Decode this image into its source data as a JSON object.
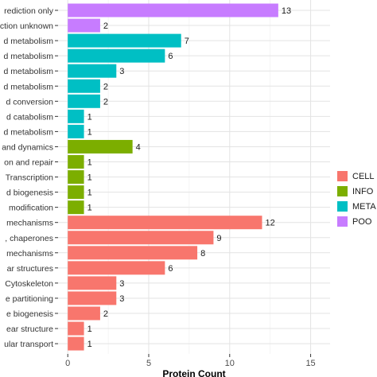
{
  "chart_data": {
    "type": "bar",
    "orientation": "horizontal",
    "xlabel": "Protein Count",
    "ylabel": "",
    "xlim": [
      -0.6,
      16.2
    ],
    "xticks": [
      0,
      5,
      10,
      15
    ],
    "grid": true,
    "legend_position": "right",
    "categories": [
      "rediction only",
      "ction unknown",
      "d metabolism",
      "d metabolism",
      "d metabolism",
      "d metabolism",
      "d conversion",
      "d catabolism",
      "d metabolism",
      "and dynamics",
      "on and repair",
      "Transcription",
      "d biogenesis",
      "modification",
      "mechanisms",
      ", chaperones",
      "mechanisms",
      "ar structures",
      "Cytoskeleton",
      "e partitioning",
      "e biogenesis",
      "ear structure",
      "ular transport"
    ],
    "values": [
      13,
      2,
      7,
      6,
      3,
      2,
      2,
      1,
      1,
      4,
      1,
      1,
      1,
      1,
      12,
      9,
      8,
      6,
      3,
      3,
      2,
      1,
      1
    ],
    "groups": [
      3,
      3,
      2,
      2,
      2,
      2,
      2,
      2,
      2,
      1,
      1,
      1,
      1,
      1,
      0,
      0,
      0,
      0,
      0,
      0,
      0,
      0,
      0
    ],
    "series": [
      {
        "name": "CELL",
        "color": "#F8766D"
      },
      {
        "name": "INFO",
        "color": "#7CAE00"
      },
      {
        "name": "META",
        "color": "#00BFC4"
      },
      {
        "name": "POO",
        "color": "#C77CFF"
      }
    ]
  }
}
